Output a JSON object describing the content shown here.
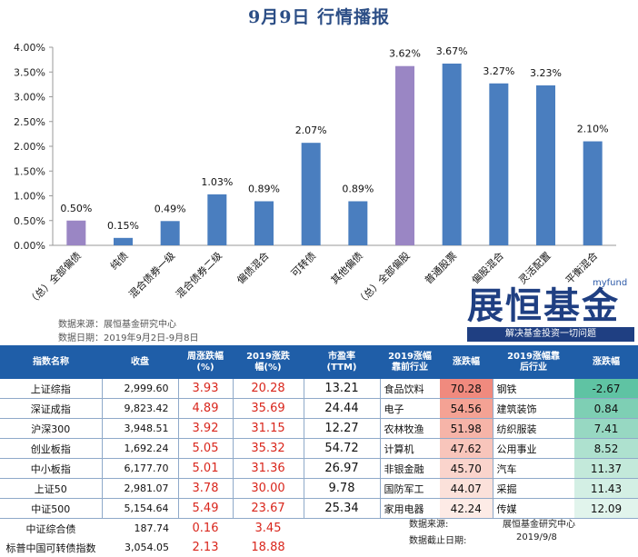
{
  "title": "9月9日  行情播报",
  "chart_data": {
    "type": "bar",
    "categories": [
      "（总）全部偏债",
      "纯债",
      "混合债券一级",
      "混合债券二级",
      "偏债混合",
      "可转债",
      "其他偏债",
      "（总）全部偏股",
      "普通股票",
      "偏股混合",
      "灵活配置",
      "平衡混合"
    ],
    "values": [
      0.5,
      0.15,
      0.49,
      1.03,
      0.89,
      2.07,
      0.89,
      3.62,
      3.67,
      3.27,
      3.23,
      2.1
    ],
    "value_labels": [
      "0.50%",
      "0.15%",
      "0.49%",
      "1.03%",
      "0.89%",
      "2.07%",
      "0.89%",
      "3.62%",
      "3.67%",
      "3.27%",
      "3.23%",
      "2.10%"
    ],
    "highlight": [
      true,
      false,
      false,
      false,
      false,
      false,
      false,
      true,
      false,
      false,
      false,
      false
    ],
    "yticks": [
      "0.00%",
      "0.50%",
      "1.00%",
      "1.50%",
      "2.00%",
      "2.50%",
      "3.00%",
      "3.50%",
      "4.00%"
    ],
    "ylim": [
      0,
      4
    ],
    "xlabel": "",
    "ylabel": "",
    "grid": false,
    "bar_color": "#4a7ebf",
    "highlight_color": "#9a86c4"
  },
  "source": {
    "line1": "数据来源：展恒基金研究中心",
    "line2": "数据日期：2019年9月2日-9月8日"
  },
  "logo": {
    "small": "myfund",
    "big": "展恒基金",
    "slogan": "解决基金投资一切问题"
  },
  "table": {
    "headers": {
      "name": "指数名称",
      "close": "收盘",
      "week_a": "周涨跌幅",
      "week_b": "(%)",
      "ytd_a": "2019涨跌",
      "ytd_b": "幅(%)",
      "pe_a": "市盈率",
      "pe_b": "(TTM)",
      "top_a": "2019涨幅",
      "top_b": "靠前行业",
      "top_chg": "涨跌幅",
      "bot_a": "2019涨幅靠",
      "bot_b": "后行业",
      "bot_chg": "涨跌幅"
    },
    "rows": [
      {
        "name": "上证综指",
        "close": "2,999.60",
        "week": "3.93",
        "ytd": "20.28",
        "pe": "13.21",
        "top_ind": "食品饮料",
        "top_val": "70.28",
        "bot_ind": "钢铁",
        "bot_val": "-2.67"
      },
      {
        "name": "深证成指",
        "close": "9,823.42",
        "week": "4.89",
        "ytd": "35.69",
        "pe": "24.44",
        "top_ind": "电子",
        "top_val": "54.56",
        "bot_ind": "建筑装饰",
        "bot_val": "0.84"
      },
      {
        "name": "沪深300",
        "close": "3,948.51",
        "week": "3.92",
        "ytd": "31.15",
        "pe": "12.27",
        "top_ind": "农林牧渔",
        "top_val": "51.98",
        "bot_ind": "纺织服装",
        "bot_val": "7.41"
      },
      {
        "name": "创业板指",
        "close": "1,692.24",
        "week": "5.05",
        "ytd": "35.32",
        "pe": "54.72",
        "top_ind": "计算机",
        "top_val": "47.62",
        "bot_ind": "公用事业",
        "bot_val": "8.52"
      },
      {
        "name": "中小板指",
        "close": "6,177.70",
        "week": "5.01",
        "ytd": "31.36",
        "pe": "26.97",
        "top_ind": "非银金融",
        "top_val": "45.70",
        "bot_ind": "汽车",
        "bot_val": "11.37"
      },
      {
        "name": "上证50",
        "close": "2,981.07",
        "week": "3.78",
        "ytd": "30.00",
        "pe": "9.78",
        "top_ind": "国防军工",
        "top_val": "44.07",
        "bot_ind": "采掘",
        "bot_val": "11.43"
      },
      {
        "name": "中证500",
        "close": "5,154.64",
        "week": "5.49",
        "ytd": "23.67",
        "pe": "25.34",
        "top_ind": "家用电器",
        "top_val": "42.24",
        "bot_ind": "传媒",
        "bot_val": "12.09"
      }
    ],
    "tail_rows": [
      {
        "name": "中证综合债",
        "close": "187.74",
        "week": "0.16",
        "ytd": "3.45"
      },
      {
        "name": "标普中国可转债指数",
        "close": "3,054.05",
        "week": "2.13",
        "ytd": "18.88"
      }
    ],
    "top_colors": [
      "#f08a7e",
      "#f4a294",
      "#f6b4a8",
      "#f8c5bb",
      "#fad4cc",
      "#fbe1da",
      "#fdebe6"
    ],
    "bot_colors": [
      "#5fc3a3",
      "#7ecfb4",
      "#97d8c2",
      "#aee1cf",
      "#c3e9da",
      "#d3efe4",
      "#e1f4ec"
    ],
    "note_source_label": "数据来源:",
    "note_source_value": "展恒基金研究中心",
    "note_date_label": "数据截止日期:",
    "note_date_value": "2019/9/8"
  }
}
